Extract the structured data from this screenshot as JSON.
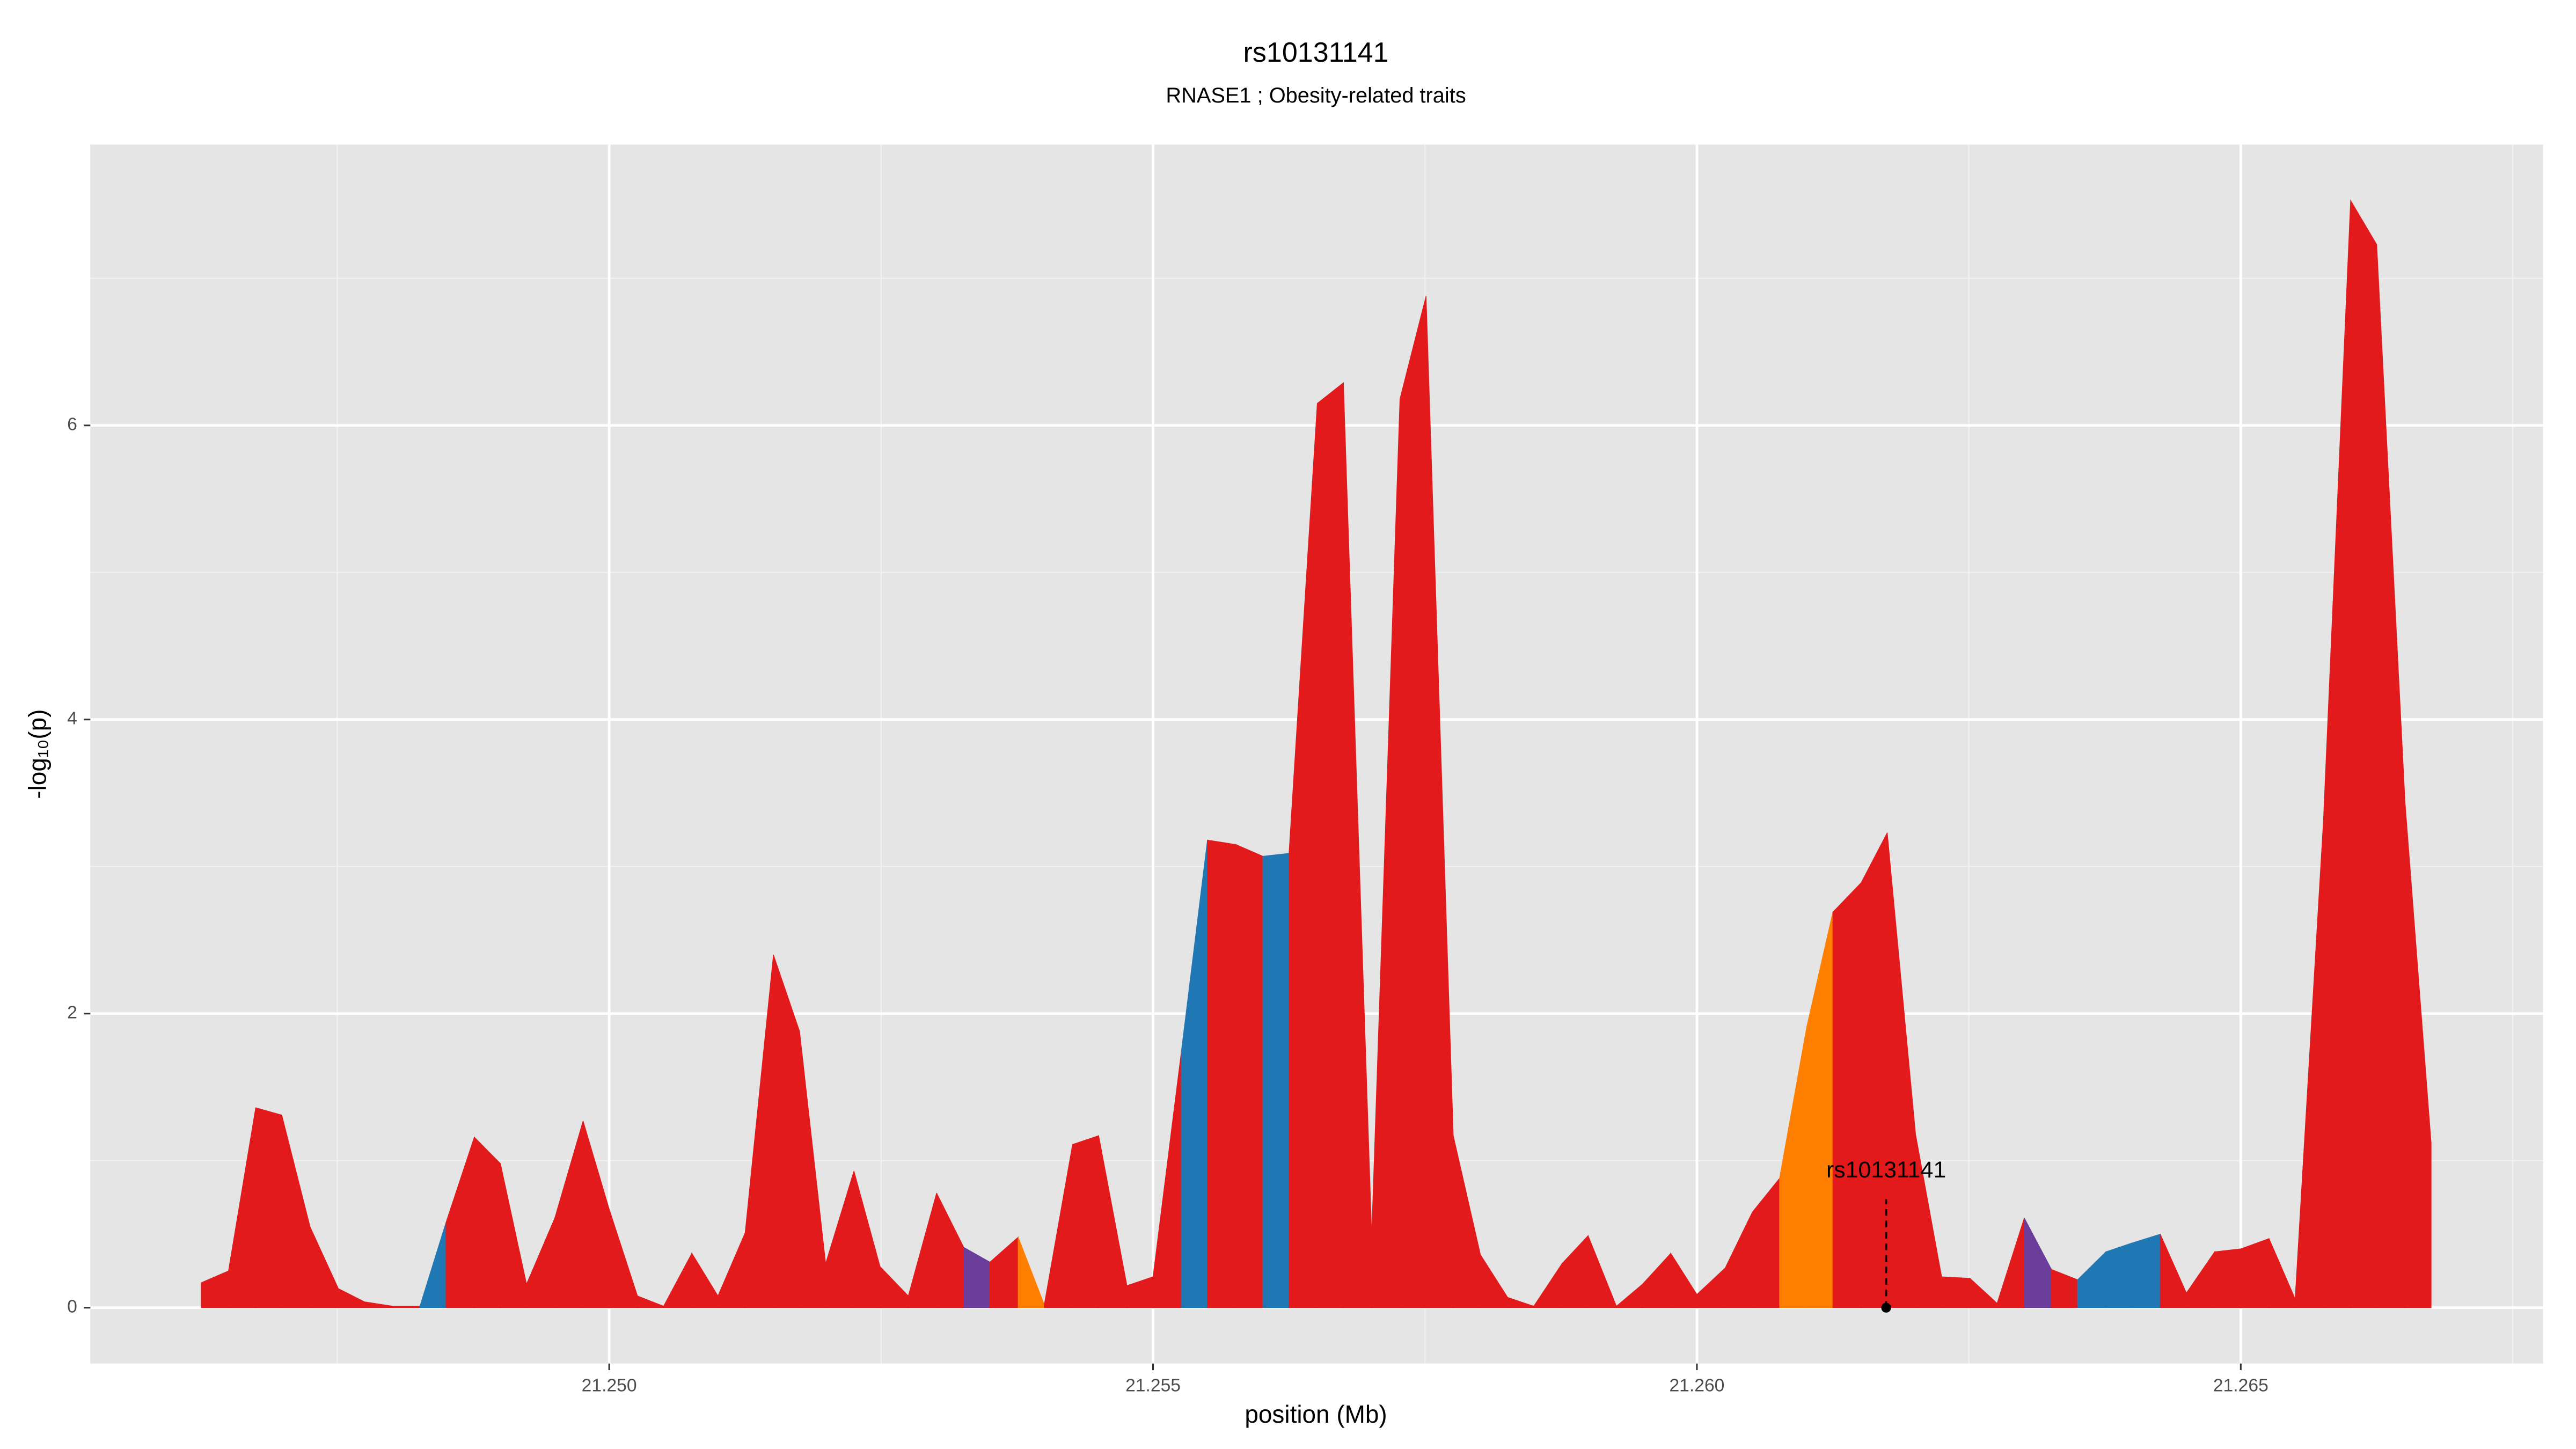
{
  "chart_data": {
    "type": "area",
    "title": "rs10131141",
    "subtitle": "RNASE1 ; Obesity-related traits",
    "x_label": "position (Mb)",
    "y_label": "-log₁₀(p)",
    "x": [
      21.24625,
      21.2465,
      21.24675,
      21.24699,
      21.24725,
      21.24751,
      21.24775,
      21.24801,
      21.24826,
      21.2485,
      21.24876,
      21.249,
      21.24924,
      21.2495,
      21.24976,
      21.25,
      21.25026,
      21.2505,
      21.25076,
      21.251,
      21.25125,
      21.25151,
      21.25175,
      21.25199,
      21.25225,
      21.25249,
      21.25275,
      21.25301,
      21.25326,
      21.2535,
      21.25376,
      21.254,
      21.25426,
      21.2545,
      21.25476,
      21.255,
      21.25526,
      21.2555,
      21.25576,
      21.25601,
      21.25625,
      21.25651,
      21.25675,
      21.25701,
      21.25727,
      21.25751,
      21.25776,
      21.25801,
      21.25826,
      21.2585,
      21.25876,
      21.259,
      21.25926,
      21.2595,
      21.25976,
      21.26,
      21.26026,
      21.26051,
      21.26076,
      21.26101,
      21.26125,
      21.26151,
      21.26175,
      21.26201,
      21.26225,
      21.26251,
      21.26276,
      21.26301,
      21.26326,
      21.2635,
      21.26376,
      21.264,
      21.26426,
      21.2645,
      21.26476,
      21.265,
      21.26526,
      21.2655,
      21.26576,
      21.26601,
      21.26625,
      21.26651,
      21.26675
    ],
    "values": [
      0.17,
      0.25,
      1.36,
      1.31,
      0.55,
      0.13,
      0.04,
      0.01,
      0.01,
      0.58,
      1.16,
      0.98,
      0.16,
      0.61,
      1.27,
      0.67,
      0.08,
      0.01,
      0.37,
      0.08,
      0.51,
      2.4,
      1.88,
      0.3,
      0.93,
      0.28,
      0.08,
      0.78,
      0.41,
      0.31,
      0.48,
      0.02,
      1.11,
      1.17,
      0.15,
      0.21,
      1.74,
      3.18,
      3.15,
      3.07,
      3.09,
      6.15,
      6.29,
      0.49,
      6.18,
      6.88,
      1.17,
      0.36,
      0.07,
      0.01,
      0.3,
      0.49,
      0.01,
      0.16,
      0.37,
      0.09,
      0.27,
      0.65,
      0.88,
      1.91,
      2.69,
      2.89,
      3.23,
      1.18,
      0.21,
      0.2,
      0.03,
      0.61,
      0.26,
      0.19,
      0.38,
      0.44,
      0.5,
      0.1,
      0.38,
      0.4,
      0.47,
      0.06,
      3.31,
      7.53,
      7.23,
      3.44,
      1.12
    ],
    "segment_colors": [
      "#e31a1c",
      "#e31a1c",
      "#e31a1c",
      "#e31a1c",
      "#e31a1c",
      "#e31a1c",
      "#e31a1c",
      "#e31a1c",
      "#1f78b4",
      "#e31a1c",
      "#e31a1c",
      "#e31a1c",
      "#e31a1c",
      "#e31a1c",
      "#e31a1c",
      "#e31a1c",
      "#e31a1c",
      "#e31a1c",
      "#e31a1c",
      "#e31a1c",
      "#e31a1c",
      "#e31a1c",
      "#e31a1c",
      "#e31a1c",
      "#e31a1c",
      "#e31a1c",
      "#e31a1c",
      "#e31a1c",
      "#6a3d9a",
      "#e31a1c",
      "#ff7f00",
      "#e31a1c",
      "#e31a1c",
      "#e31a1c",
      "#e31a1c",
      "#e31a1c",
      "#1f78b4",
      "#e31a1c",
      "#e31a1c",
      "#1f78b4",
      "#e31a1c",
      "#e31a1c",
      "#e31a1c",
      "#e31a1c",
      "#e31a1c",
      "#e31a1c",
      "#e31a1c",
      "#e31a1c",
      "#e31a1c",
      "#e31a1c",
      "#e31a1c",
      "#e31a1c",
      "#e31a1c",
      "#e31a1c",
      "#e31a1c",
      "#e31a1c",
      "#e31a1c",
      "#e31a1c",
      "#ff7f00",
      "#ff7f00",
      "#e31a1c",
      "#e31a1c",
      "#e31a1c",
      "#e31a1c",
      "#e31a1c",
      "#e31a1c",
      "#e31a1c",
      "#6a3d9a",
      "#e31a1c",
      "#1f78b4",
      "#1f78b4",
      "#1f78b4",
      "#e31a1c",
      "#e31a1c",
      "#e31a1c",
      "#e31a1c",
      "#e31a1c",
      "#e31a1c",
      "#e31a1c",
      "#e31a1c",
      "#e31a1c",
      "#e31a1c"
    ],
    "annotation": {
      "text": "rs10131141",
      "x": 21.26174,
      "y": 0
    },
    "xlim": [
      21.24523,
      21.26778
    ],
    "ylim": [
      -0.38,
      7.91
    ],
    "xticks": [
      {
        "value": 21.25,
        "label": "21.250"
      },
      {
        "value": 21.255,
        "label": "21.255"
      },
      {
        "value": 21.26,
        "label": "21.260"
      },
      {
        "value": 21.265,
        "label": "21.265"
      }
    ],
    "yticks": [
      0,
      2,
      4,
      6
    ],
    "grid": true,
    "panel_color": "#e5e5e5"
  }
}
